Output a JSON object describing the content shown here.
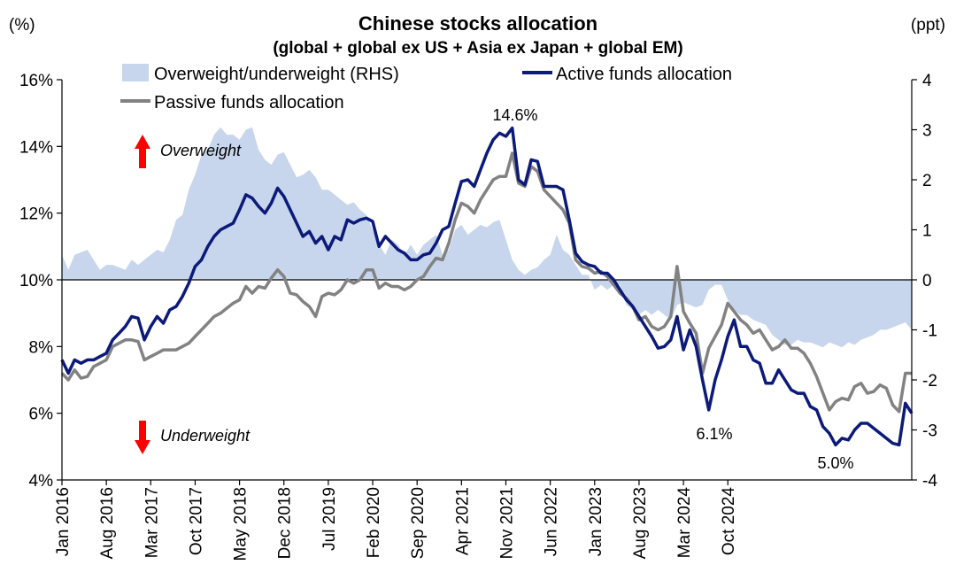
{
  "chart_data": {
    "type": "line",
    "title": "Chinese stocks allocation",
    "subtitle": "(global + global ex US + Asia ex Japan + global EM)",
    "left_axis_unit": "(%)",
    "right_axis_unit": "(ppt)",
    "left_ylim": [
      4,
      16
    ],
    "left_ticks": [
      "4%",
      "6%",
      "8%",
      "10%",
      "12%",
      "14%",
      "16%"
    ],
    "right_ylim": [
      -4,
      4
    ],
    "right_ticks": [
      "-4",
      "-3",
      "-2",
      "-1",
      "0",
      "1",
      "2",
      "3",
      "4"
    ],
    "x_start": "Jan 2016",
    "x_labels": [
      "Jan 2016",
      "Aug 2016",
      "Mar 2017",
      "Oct 2017",
      "May 2018",
      "Dec 2018",
      "Jul 2019",
      "Feb 2020",
      "Sep 2020",
      "Apr 2021",
      "Nov 2021",
      "Jun 2022",
      "Jan 2023",
      "Aug 2023",
      "Mar 2024",
      "Oct 2024"
    ],
    "legend": [
      {
        "name": "Overweight/underweight (RHS)",
        "kind": "area"
      },
      {
        "name": "Active funds allocation",
        "kind": "line"
      },
      {
        "name": "Passive funds allocation",
        "kind": "line"
      }
    ],
    "annotations": {
      "overweight": "Overweight",
      "underweight": "Underweight",
      "peak": "14.6%",
      "low_2022": "6.1%",
      "low_2024": "5.0%"
    },
    "colors": {
      "active": "#0c1a7a",
      "passive": "#828282",
      "area": "#c7d6ec",
      "arrow": "#ff0000",
      "right_negative_ticks": "#ff0000"
    },
    "series": [
      {
        "name": "Active funds allocation",
        "axis": "left",
        "values": [
          7.6,
          7.2,
          7.6,
          7.5,
          7.6,
          7.6,
          7.7,
          7.8,
          8.2,
          8.4,
          8.6,
          8.9,
          8.85,
          8.2,
          8.6,
          8.9,
          8.7,
          9.1,
          9.2,
          9.5,
          9.9,
          10.4,
          10.6,
          11.0,
          11.3,
          11.5,
          11.6,
          11.7,
          12.1,
          12.55,
          12.45,
          12.2,
          12.0,
          12.3,
          12.75,
          12.5,
          12.1,
          11.7,
          11.3,
          11.45,
          11.1,
          11.3,
          10.9,
          11.3,
          11.2,
          11.8,
          11.7,
          11.8,
          11.85,
          11.75,
          11.0,
          11.3,
          11.1,
          10.9,
          10.8,
          10.6,
          10.6,
          10.75,
          10.8,
          11.1,
          11.5,
          11.6,
          12.3,
          12.95,
          13.0,
          12.8,
          13.3,
          13.8,
          14.2,
          14.4,
          14.3,
          14.55,
          13.0,
          12.85,
          13.6,
          13.55,
          12.8,
          12.8,
          12.8,
          12.7,
          11.8,
          10.8,
          10.55,
          10.45,
          10.4,
          10.2,
          10.2,
          10.0,
          9.7,
          9.4,
          9.2,
          8.9,
          8.6,
          8.3,
          7.95,
          8.0,
          8.2,
          8.9,
          7.9,
          8.5,
          8.0,
          7.0,
          6.1,
          7.0,
          7.6,
          8.3,
          8.8,
          8.0,
          8.0,
          7.6,
          7.5,
          6.9,
          6.9,
          7.3,
          7.0,
          6.7,
          6.6,
          6.6,
          6.2,
          6.1,
          5.6,
          5.4,
          5.05,
          5.25,
          5.2,
          5.5,
          5.7,
          5.7,
          5.55,
          5.4,
          5.25,
          5.1,
          5.05,
          6.3,
          6.0
        ]
      },
      {
        "name": "Passive funds allocation",
        "axis": "left",
        "values": [
          7.2,
          7.0,
          7.3,
          7.05,
          7.1,
          7.4,
          7.5,
          7.6,
          8.0,
          8.1,
          8.2,
          8.2,
          8.15,
          7.6,
          7.7,
          7.8,
          7.9,
          7.9,
          7.9,
          8.0,
          8.1,
          8.3,
          8.5,
          8.7,
          8.9,
          9.0,
          9.15,
          9.3,
          9.4,
          9.8,
          9.6,
          9.8,
          9.75,
          10.05,
          10.3,
          10.1,
          9.6,
          9.55,
          9.35,
          9.2,
          8.9,
          9.5,
          9.6,
          9.55,
          9.7,
          10.0,
          9.9,
          10.0,
          10.3,
          10.3,
          9.75,
          9.9,
          9.8,
          9.8,
          9.7,
          9.8,
          10.0,
          10.1,
          10.4,
          10.65,
          10.6,
          11.1,
          11.8,
          12.3,
          12.2,
          12.0,
          12.4,
          12.7,
          13.0,
          13.1,
          13.1,
          13.8,
          12.9,
          12.8,
          13.4,
          13.25,
          12.7,
          12.5,
          12.3,
          12.1,
          11.7,
          10.6,
          10.4,
          10.35,
          10.2,
          10.25,
          10.1,
          9.85,
          9.6,
          9.45,
          9.2,
          8.8,
          8.9,
          8.6,
          8.5,
          8.6,
          8.9,
          10.4,
          9.05,
          8.7,
          8.4,
          7.2,
          7.95,
          8.3,
          8.65,
          9.3,
          9.05,
          8.8,
          8.65,
          8.4,
          8.5,
          8.2,
          7.9,
          8.0,
          8.2,
          7.95,
          7.95,
          7.8,
          7.5,
          7.1,
          6.6,
          6.1,
          6.35,
          6.45,
          6.4,
          6.8,
          6.9,
          6.6,
          6.65,
          6.85,
          6.75,
          6.25,
          6.05,
          7.2,
          7.2
        ]
      },
      {
        "name": "Overweight/underweight (RHS)",
        "axis": "right",
        "type": "area",
        "values": [
          0.5,
          0.2,
          0.5,
          0.55,
          0.6,
          0.4,
          0.2,
          0.3,
          0.3,
          0.25,
          0.2,
          0.4,
          0.3,
          0.4,
          0.5,
          0.6,
          0.55,
          0.8,
          1.2,
          1.3,
          1.8,
          2.1,
          2.5,
          2.6,
          2.9,
          3.05,
          2.9,
          2.9,
          2.8,
          3.0,
          3.05,
          2.6,
          2.4,
          2.3,
          2.5,
          2.55,
          2.3,
          2.05,
          2.1,
          2.2,
          2.05,
          1.8,
          1.8,
          1.7,
          1.6,
          1.5,
          1.55,
          1.4,
          1.3,
          1.0,
          0.7,
          0.5,
          0.8,
          0.7,
          0.5,
          0.7,
          0.5,
          0.7,
          0.8,
          0.9,
          0.5,
          0.6,
          1.0,
          1.1,
          0.9,
          1.0,
          1.1,
          1.05,
          1.15,
          1.2,
          0.8,
          0.4,
          0.2,
          0.1,
          0.2,
          0.25,
          0.4,
          0.5,
          0.9,
          0.6,
          0.5,
          0.3,
          0.1,
          0.1,
          -0.2,
          -0.1,
          -0.2,
          -0.1,
          -0.1,
          -0.5,
          -0.6,
          -0.7,
          -0.6,
          -0.7,
          -0.6,
          -0.7,
          -0.8,
          -0.5,
          -0.45,
          -0.5,
          -0.55,
          -0.5,
          -0.2,
          -0.1,
          -0.1,
          -0.4,
          -0.6,
          -0.7,
          -0.7,
          -0.8,
          -0.85,
          -0.9,
          -1.1,
          -1.2,
          -1.3,
          -1.3,
          -1.2,
          -1.25,
          -1.25,
          -1.3,
          -1.35,
          -1.25,
          -1.3,
          -1.35,
          -1.25,
          -1.3,
          -1.2,
          -1.15,
          -1.1,
          -1.0,
          -1.0,
          -0.95,
          -0.9,
          -0.85,
          -1.0
        ]
      }
    ]
  }
}
